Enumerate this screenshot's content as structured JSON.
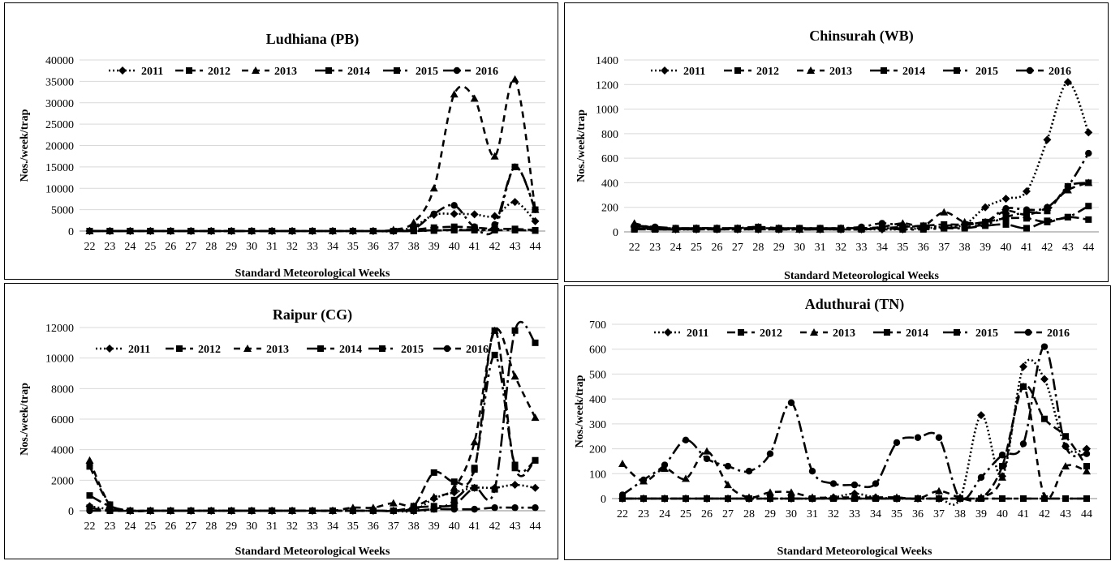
{
  "chart_data": [
    {
      "type": "line",
      "title": "Ludhiana (PB)",
      "xlabel": "Standard  Meteorological Weeks",
      "ylabel": "Nos./week/trap",
      "ylim": [
        0,
        40000
      ],
      "yticks": [
        0,
        5000,
        10000,
        15000,
        20000,
        25000,
        30000,
        35000,
        40000
      ],
      "grid": true,
      "legend": "top",
      "categories": [
        "22",
        "23",
        "24",
        "25",
        "26",
        "27",
        "28",
        "29",
        "30",
        "31",
        "32",
        "33",
        "34",
        "35",
        "36",
        "37",
        "38",
        "39",
        "40",
        "41",
        "42",
        "43",
        "44"
      ],
      "series": [
        {
          "name": "2011",
          "values": [
            0,
            0,
            0,
            0,
            0,
            0,
            0,
            0,
            0,
            0,
            0,
            0,
            0,
            0,
            0,
            0,
            1000,
            3800,
            4000,
            3900,
            3500,
            6800,
            2300
          ]
        },
        {
          "name": "2012",
          "values": [
            0,
            0,
            0,
            0,
            0,
            0,
            0,
            0,
            0,
            0,
            0,
            0,
            0,
            0,
            0,
            0,
            300,
            800,
            1000,
            800,
            500,
            500,
            200
          ]
        },
        {
          "name": "2013",
          "values": [
            0,
            0,
            0,
            0,
            0,
            0,
            0,
            0,
            0,
            0,
            0,
            0,
            0,
            0,
            0,
            300,
            2000,
            10000,
            32000,
            31000,
            17500,
            35500,
            5000
          ]
        },
        {
          "name": "2014",
          "values": [
            0,
            0,
            0,
            0,
            0,
            0,
            0,
            0,
            0,
            0,
            0,
            0,
            0,
            0,
            0,
            0,
            0,
            200,
            300,
            300,
            200,
            200,
            100
          ]
        },
        {
          "name": "2015",
          "values": [
            0,
            0,
            0,
            0,
            0,
            0,
            0,
            0,
            0,
            0,
            0,
            0,
            0,
            0,
            0,
            0,
            0,
            100,
            200,
            200,
            400,
            15000,
            5000
          ]
        },
        {
          "name": "2016",
          "values": [
            0,
            0,
            0,
            0,
            0,
            0,
            0,
            0,
            0,
            0,
            0,
            0,
            0,
            0,
            0,
            0,
            500,
            4000,
            6000,
            1000,
            1500,
            15000,
            5000
          ]
        }
      ]
    },
    {
      "type": "line",
      "title": "Chinsurah (WB)",
      "xlabel": "Standard  Meteorological Weeks",
      "ylabel": "Nos./week/trap",
      "ylim": [
        0,
        1400
      ],
      "yticks": [
        0,
        200,
        400,
        600,
        800,
        1000,
        1200,
        1400
      ],
      "grid": true,
      "legend": "top",
      "categories": [
        "22",
        "23",
        "24",
        "25",
        "26",
        "27",
        "28",
        "29",
        "30",
        "31",
        "32",
        "33",
        "34",
        "35",
        "36",
        "37",
        "38",
        "39",
        "40",
        "41",
        "42",
        "43",
        "44"
      ],
      "series": [
        {
          "name": "2011",
          "values": [
            40,
            30,
            20,
            20,
            20,
            20,
            20,
            20,
            20,
            20,
            20,
            20,
            20,
            20,
            30,
            40,
            60,
            200,
            270,
            330,
            750,
            1220,
            810
          ]
        },
        {
          "name": "2012",
          "values": [
            30,
            20,
            20,
            20,
            20,
            20,
            20,
            20,
            20,
            20,
            20,
            20,
            30,
            40,
            50,
            60,
            60,
            80,
            110,
            110,
            80,
            120,
            100
          ]
        },
        {
          "name": "2013",
          "values": [
            70,
            30,
            20,
            30,
            30,
            30,
            40,
            30,
            20,
            20,
            30,
            30,
            40,
            70,
            50,
            160,
            80,
            80,
            170,
            140,
            200,
            340,
            400
          ]
        },
        {
          "name": "2014",
          "values": [
            30,
            30,
            30,
            30,
            30,
            30,
            30,
            30,
            30,
            30,
            30,
            30,
            30,
            30,
            30,
            30,
            30,
            50,
            60,
            30,
            90,
            120,
            210
          ]
        },
        {
          "name": "2015",
          "values": [
            20,
            20,
            20,
            30,
            20,
            30,
            40,
            20,
            20,
            20,
            20,
            20,
            30,
            20,
            20,
            30,
            40,
            60,
            120,
            160,
            170,
            370,
            400
          ]
        },
        {
          "name": "2016",
          "values": [
            50,
            40,
            30,
            30,
            30,
            30,
            30,
            30,
            30,
            30,
            30,
            40,
            70,
            50,
            40,
            50,
            60,
            80,
            190,
            180,
            200,
            370,
            640
          ]
        }
      ]
    },
    {
      "type": "line",
      "title": "Raipur (CG)",
      "xlabel": "Standard  Meteorological Weeks",
      "ylabel": "Nos./week/trap",
      "ylim": [
        0,
        12000
      ],
      "yticks": [
        0,
        2000,
        4000,
        6000,
        8000,
        10000,
        12000
      ],
      "grid": true,
      "legend": "top",
      "categories": [
        "22",
        "23",
        "24",
        "25",
        "26",
        "27",
        "28",
        "29",
        "30",
        "31",
        "32",
        "33",
        "34",
        "35",
        "36",
        "37",
        "38",
        "39",
        "40",
        "41",
        "42",
        "43",
        "44"
      ],
      "series": [
        {
          "name": "2011",
          "values": [
            300,
            100,
            0,
            0,
            0,
            0,
            0,
            0,
            0,
            0,
            0,
            0,
            0,
            0,
            0,
            0,
            0,
            800,
            1200,
            1500,
            1500,
            1700,
            1500
          ]
        },
        {
          "name": "2012",
          "values": [
            2900,
            400,
            0,
            0,
            0,
            0,
            0,
            0,
            0,
            0,
            0,
            0,
            0,
            0,
            0,
            0,
            300,
            2500,
            1900,
            2700,
            11800,
            2800,
            3300
          ]
        },
        {
          "name": "2013",
          "values": [
            3300,
            400,
            0,
            0,
            0,
            0,
            0,
            0,
            0,
            0,
            0,
            0,
            0,
            200,
            200,
            500,
            300,
            900,
            1500,
            4500,
            11800,
            8800,
            6100
          ]
        },
        {
          "name": "2014",
          "values": [
            1000,
            300,
            0,
            0,
            0,
            0,
            0,
            0,
            0,
            0,
            0,
            0,
            0,
            0,
            0,
            0,
            200,
            300,
            400,
            1500,
            1400,
            11800,
            11000
          ]
        },
        {
          "name": "2015",
          "values": [
            200,
            0,
            0,
            0,
            0,
            0,
            0,
            0,
            0,
            0,
            0,
            0,
            0,
            0,
            0,
            0,
            0,
            100,
            700,
            2800,
            10200,
            3000,
            3300
          ]
        },
        {
          "name": "2016",
          "values": [
            0,
            0,
            0,
            0,
            0,
            0,
            0,
            0,
            0,
            0,
            0,
            0,
            0,
            0,
            0,
            0,
            0,
            100,
            100,
            100,
            200,
            200,
            200
          ]
        }
      ]
    },
    {
      "type": "line",
      "title": "Aduthurai (TN)",
      "xlabel": "Standard  Meteorological Weeks",
      "ylabel": "Nos./week/trap",
      "ylim": [
        0,
        700
      ],
      "yticks": [
        0,
        100,
        200,
        300,
        400,
        500,
        600,
        700
      ],
      "grid": true,
      "legend": "top",
      "categories": [
        "22",
        "23",
        "24",
        "25",
        "26",
        "27",
        "28",
        "29",
        "30",
        "31",
        "32",
        "33",
        "34",
        "35",
        "36",
        "37",
        "38",
        "39",
        "40",
        "41",
        "42",
        "43",
        "44"
      ],
      "series": [
        {
          "name": "2011",
          "values": [
            0,
            0,
            0,
            0,
            0,
            0,
            0,
            0,
            0,
            0,
            5,
            20,
            5,
            0,
            0,
            0,
            0,
            335,
            90,
            530,
            480,
            210,
            200
          ]
        },
        {
          "name": "2012",
          "values": [
            0,
            0,
            0,
            0,
            0,
            0,
            0,
            0,
            0,
            0,
            0,
            0,
            0,
            0,
            0,
            0,
            0,
            0,
            130,
            450,
            320,
            250,
            130
          ]
        },
        {
          "name": "2013",
          "values": [
            140,
            70,
            120,
            80,
            190,
            55,
            5,
            25,
            25,
            5,
            5,
            5,
            5,
            5,
            0,
            30,
            5,
            5,
            85,
            450,
            10,
            130,
            110
          ]
        },
        {
          "name": "2014",
          "values": [
            0,
            0,
            0,
            0,
            0,
            0,
            0,
            0,
            0,
            0,
            0,
            0,
            0,
            0,
            0,
            0,
            0,
            0,
            0,
            0,
            0,
            0,
            0
          ]
        },
        {
          "name": "2015",
          "values": [
            0,
            0,
            0,
            0,
            0,
            0,
            0,
            0,
            0,
            0,
            0,
            0,
            0,
            0,
            0,
            0,
            0,
            0,
            0,
            0,
            0,
            0,
            0
          ]
        },
        {
          "name": "2016",
          "values": [
            15,
            75,
            135,
            235,
            160,
            130,
            110,
            180,
            385,
            110,
            60,
            55,
            60,
            225,
            245,
            245,
            0,
            85,
            175,
            220,
            610,
            210,
            180
          ]
        }
      ]
    }
  ]
}
